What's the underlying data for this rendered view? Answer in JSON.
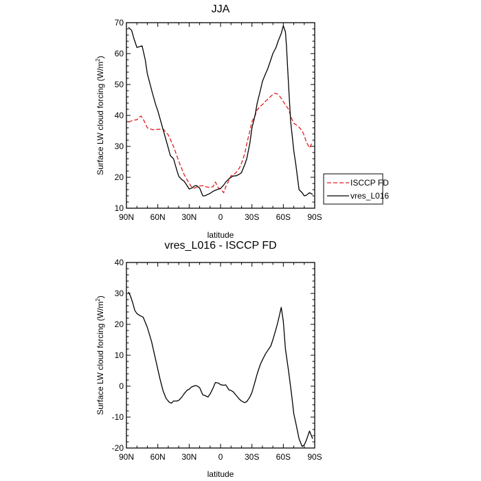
{
  "chart_data": [
    {
      "type": "line",
      "title": "JJA",
      "xlabel": "latitude",
      "ylabel": "Surface LW cloud forcing (W/m",
      "ylabel_sup": "2",
      "ylabel_close": ")",
      "xlim": [
        90,
        -90
      ],
      "ylim": [
        10,
        70
      ],
      "xticks": [
        90,
        60,
        30,
        0,
        -30,
        -60,
        -90
      ],
      "xtick_labels": [
        "90N",
        "60N",
        "30N",
        "0",
        "30S",
        "60S",
        "90S"
      ],
      "yticks": [
        10,
        20,
        30,
        40,
        50,
        60,
        70
      ],
      "ytick_labels": [
        "10",
        "20",
        "30",
        "40",
        "50",
        "60",
        "70"
      ],
      "legend_position": "outside-right",
      "series": [
        {
          "name": "ISCCP FD",
          "color": "#e31a1c",
          "dash": "dashed",
          "x": [
            88,
            85,
            83,
            80,
            78,
            76,
            73,
            70,
            65,
            60,
            55,
            50,
            45,
            40,
            35,
            30,
            27,
            25,
            22,
            20,
            17,
            15,
            12,
            10,
            7,
            5,
            2,
            0,
            -3,
            -5,
            -8,
            -10,
            -12,
            -15,
            -18,
            -20,
            -23,
            -25,
            -28,
            -30,
            -33,
            -35,
            -38,
            -40,
            -42,
            -45,
            -48,
            -50,
            -52,
            -55,
            -57,
            -60,
            -62,
            -65,
            -68,
            -70,
            -72,
            -75,
            -78,
            -80,
            -82,
            -85,
            -88
          ],
          "y": [
            37.8,
            38.3,
            38.5,
            38.6,
            39.4,
            39.8,
            38.2,
            36.0,
            35.4,
            35.5,
            35.6,
            33.7,
            30.0,
            25.2,
            21.0,
            18.0,
            16.6,
            16.5,
            16.9,
            17.2,
            17.3,
            17.0,
            16.8,
            16.7,
            17.0,
            18.5,
            16.5,
            16.2,
            15.0,
            17.0,
            19.0,
            20.5,
            20.7,
            21.6,
            23.0,
            24.5,
            27.5,
            30.8,
            35.0,
            38.0,
            40.0,
            41.8,
            43.0,
            43.5,
            44.3,
            45.2,
            46.2,
            46.7,
            47.2,
            46.8,
            46.0,
            44.5,
            43.4,
            42.0,
            39.0,
            37.5,
            37.0,
            36.2,
            35.0,
            33.5,
            31.4,
            29.5,
            31.5
          ]
        },
        {
          "name": "vres_L016",
          "color": "#000000",
          "dash": "solid",
          "x": [
            88,
            85,
            83,
            80,
            75,
            72,
            70,
            65,
            62,
            60,
            55,
            50,
            48,
            45,
            42,
            40,
            37,
            35,
            33,
            30,
            27,
            25,
            23,
            20,
            17,
            15,
            12,
            10,
            7,
            5,
            2,
            0,
            -3,
            -5,
            -8,
            -10,
            -12,
            -15,
            -18,
            -20,
            -23,
            -25,
            -28,
            -30,
            -33,
            -35,
            -38,
            -40,
            -43,
            -45,
            -48,
            -50,
            -53,
            -55,
            -58,
            -60,
            -62,
            -63,
            -65,
            -67,
            -70,
            -72,
            -75,
            -78,
            -80,
            -82,
            -85,
            -88
          ],
          "y": [
            68.5,
            67.5,
            65.0,
            62.0,
            62.5,
            58.0,
            53.5,
            47.0,
            43.5,
            41.5,
            35.5,
            29.5,
            27.0,
            26.0,
            22.5,
            20.3,
            19.2,
            18.8,
            17.8,
            16.2,
            16.6,
            17.2,
            17.3,
            16.5,
            14.0,
            14.0,
            14.5,
            14.8,
            15.5,
            15.8,
            16.2,
            16.4,
            17.5,
            18.5,
            19.5,
            20.0,
            20.4,
            20.5,
            21.0,
            21.5,
            24.0,
            26.0,
            31.0,
            36.0,
            40.0,
            44.0,
            48.0,
            51.0,
            53.5,
            55.0,
            58.0,
            60.0,
            62.0,
            64.0,
            66.5,
            69.0,
            67.0,
            62.5,
            50.0,
            38.0,
            28.5,
            24.0,
            16.0,
            15.0,
            14.0,
            14.2,
            15.0,
            14.5
          ]
        }
      ]
    },
    {
      "type": "line",
      "title": "vres_L016 - ISCCP FD",
      "xlabel": "latitude",
      "ylabel": "Surface LW cloud forcing (W/m",
      "ylabel_sup": "2",
      "ylabel_close": ")",
      "xlim": [
        90,
        -90
      ],
      "ylim": [
        -20,
        40
      ],
      "xticks": [
        90,
        60,
        30,
        0,
        -30,
        -60,
        -90
      ],
      "xtick_labels": [
        "90N",
        "60N",
        "30N",
        "0",
        "30S",
        "60S",
        "90S"
      ],
      "yticks": [
        -20,
        -10,
        0,
        10,
        20,
        30,
        40
      ],
      "ytick_labels": [
        "-20",
        "-10",
        "0",
        "10",
        "20",
        "30",
        "40"
      ],
      "series": [
        {
          "color": "#000000",
          "dash": "solid",
          "x": [
            88,
            86,
            84,
            82,
            80,
            77,
            74,
            70,
            66,
            62,
            58,
            55,
            52,
            49,
            47,
            45,
            42,
            40,
            37,
            35,
            32,
            30,
            28,
            26,
            24,
            22,
            20,
            17,
            15,
            12,
            10,
            7,
            5,
            2,
            0,
            -3,
            -5,
            -8,
            -10,
            -12,
            -15,
            -18,
            -20,
            -23,
            -25,
            -28,
            -30,
            -33,
            -35,
            -38,
            -40,
            -43,
            -45,
            -48,
            -50,
            -53,
            -55,
            -58,
            -60,
            -62,
            -65,
            -68,
            -70,
            -72,
            -75,
            -78,
            -80,
            -82,
            -85,
            -88
          ],
          "y": [
            30.5,
            29.0,
            27.0,
            24.5,
            23.5,
            22.8,
            22.3,
            19.0,
            14.5,
            8.5,
            2.5,
            -1.5,
            -4.0,
            -5.2,
            -5.5,
            -4.8,
            -4.8,
            -4.6,
            -3.5,
            -2.5,
            -1.3,
            -1.0,
            -0.3,
            0.0,
            0.2,
            0.0,
            -0.5,
            -2.8,
            -3.0,
            -3.5,
            -2.5,
            -0.5,
            1.2,
            1.0,
            0.5,
            0.3,
            0.4,
            -1.2,
            -1.4,
            -1.8,
            -3.0,
            -4.2,
            -4.8,
            -5.3,
            -5.0,
            -3.5,
            -2.0,
            1.5,
            4.0,
            7.0,
            8.5,
            10.5,
            11.5,
            13.0,
            15.0,
            18.5,
            21.0,
            25.5,
            21.0,
            12.0,
            5.0,
            -3.0,
            -9.0,
            -12.0,
            -17.0,
            -19.5,
            -19.0,
            -17.5,
            -14.5,
            -17.0
          ]
        }
      ]
    }
  ]
}
